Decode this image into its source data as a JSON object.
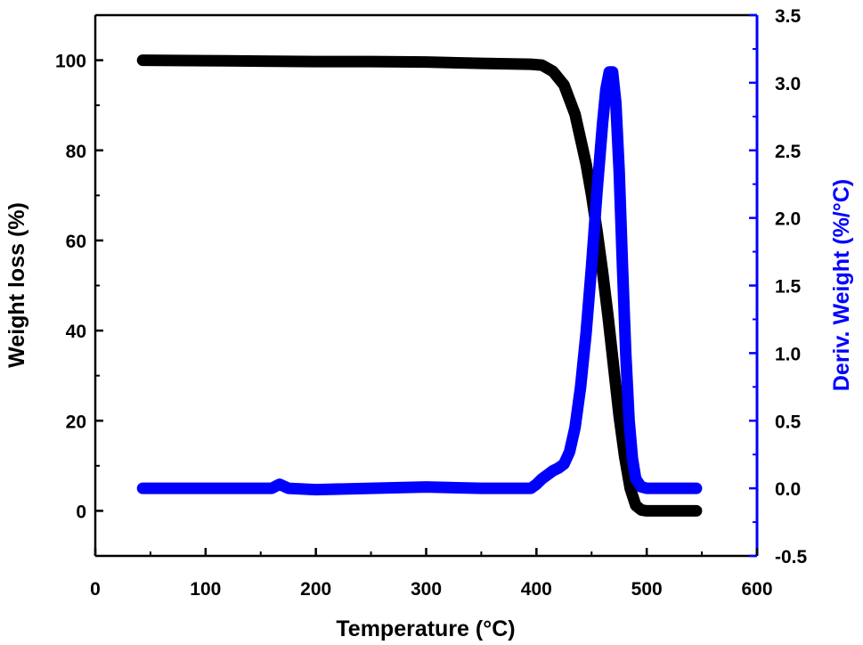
{
  "chart_data": {
    "type": "line",
    "xlabel": "Temperature (°C)",
    "ylabel": "Weight loss (%)",
    "y2label": "Deriv. Weight (%/°C)",
    "xlim": [
      0,
      600
    ],
    "ylim": [
      -10,
      110
    ],
    "y2lim": [
      -0.5,
      3.5
    ],
    "xticks": [
      0,
      100,
      200,
      300,
      400,
      500,
      600
    ],
    "yticks": [
      0,
      20,
      40,
      60,
      80,
      100
    ],
    "y2ticks": [
      -0.5,
      0.0,
      0.5,
      1.0,
      1.5,
      2.0,
      2.5,
      3.0,
      3.5
    ],
    "grid": false,
    "colors": {
      "weight": "#000000",
      "deriv": "#0000ff",
      "axis": "#000000",
      "axis_right": "#0000ff"
    },
    "series": [
      {
        "axis": "left",
        "color": "#000000",
        "x": [
          43,
          100,
          150,
          200,
          250,
          300,
          350,
          395,
          405,
          415,
          425,
          435,
          445,
          450,
          455,
          460,
          465,
          470,
          475,
          480,
          485,
          490,
          495,
          500,
          545
        ],
        "y": [
          100,
          99.9,
          99.8,
          99.7,
          99.7,
          99.6,
          99.3,
          99.1,
          98.9,
          97.5,
          94.5,
          88,
          77,
          70,
          62,
          53,
          43,
          32,
          21,
          12,
          5,
          1.2,
          0.2,
          0,
          0
        ]
      },
      {
        "axis": "right",
        "color": "#0000ff",
        "x": [
          43,
          100,
          150,
          160,
          167,
          175,
          200,
          250,
          300,
          350,
          390,
          395,
          400,
          405,
          410,
          415,
          420,
          425,
          430,
          435,
          440,
          445,
          450,
          455,
          460,
          463,
          466,
          469,
          472,
          475,
          478,
          481,
          484,
          487,
          490,
          495,
          500,
          545
        ],
        "y": [
          0.0,
          0.0,
          0.0,
          0.0,
          0.03,
          0.0,
          -0.01,
          0.0,
          0.01,
          0.0,
          0.0,
          0.0,
          0.03,
          0.07,
          0.1,
          0.13,
          0.15,
          0.18,
          0.27,
          0.45,
          0.75,
          1.15,
          1.65,
          2.2,
          2.7,
          2.95,
          3.08,
          3.08,
          2.85,
          2.35,
          1.65,
          1.0,
          0.5,
          0.22,
          0.07,
          0.01,
          0.0,
          0.0
        ]
      }
    ]
  }
}
